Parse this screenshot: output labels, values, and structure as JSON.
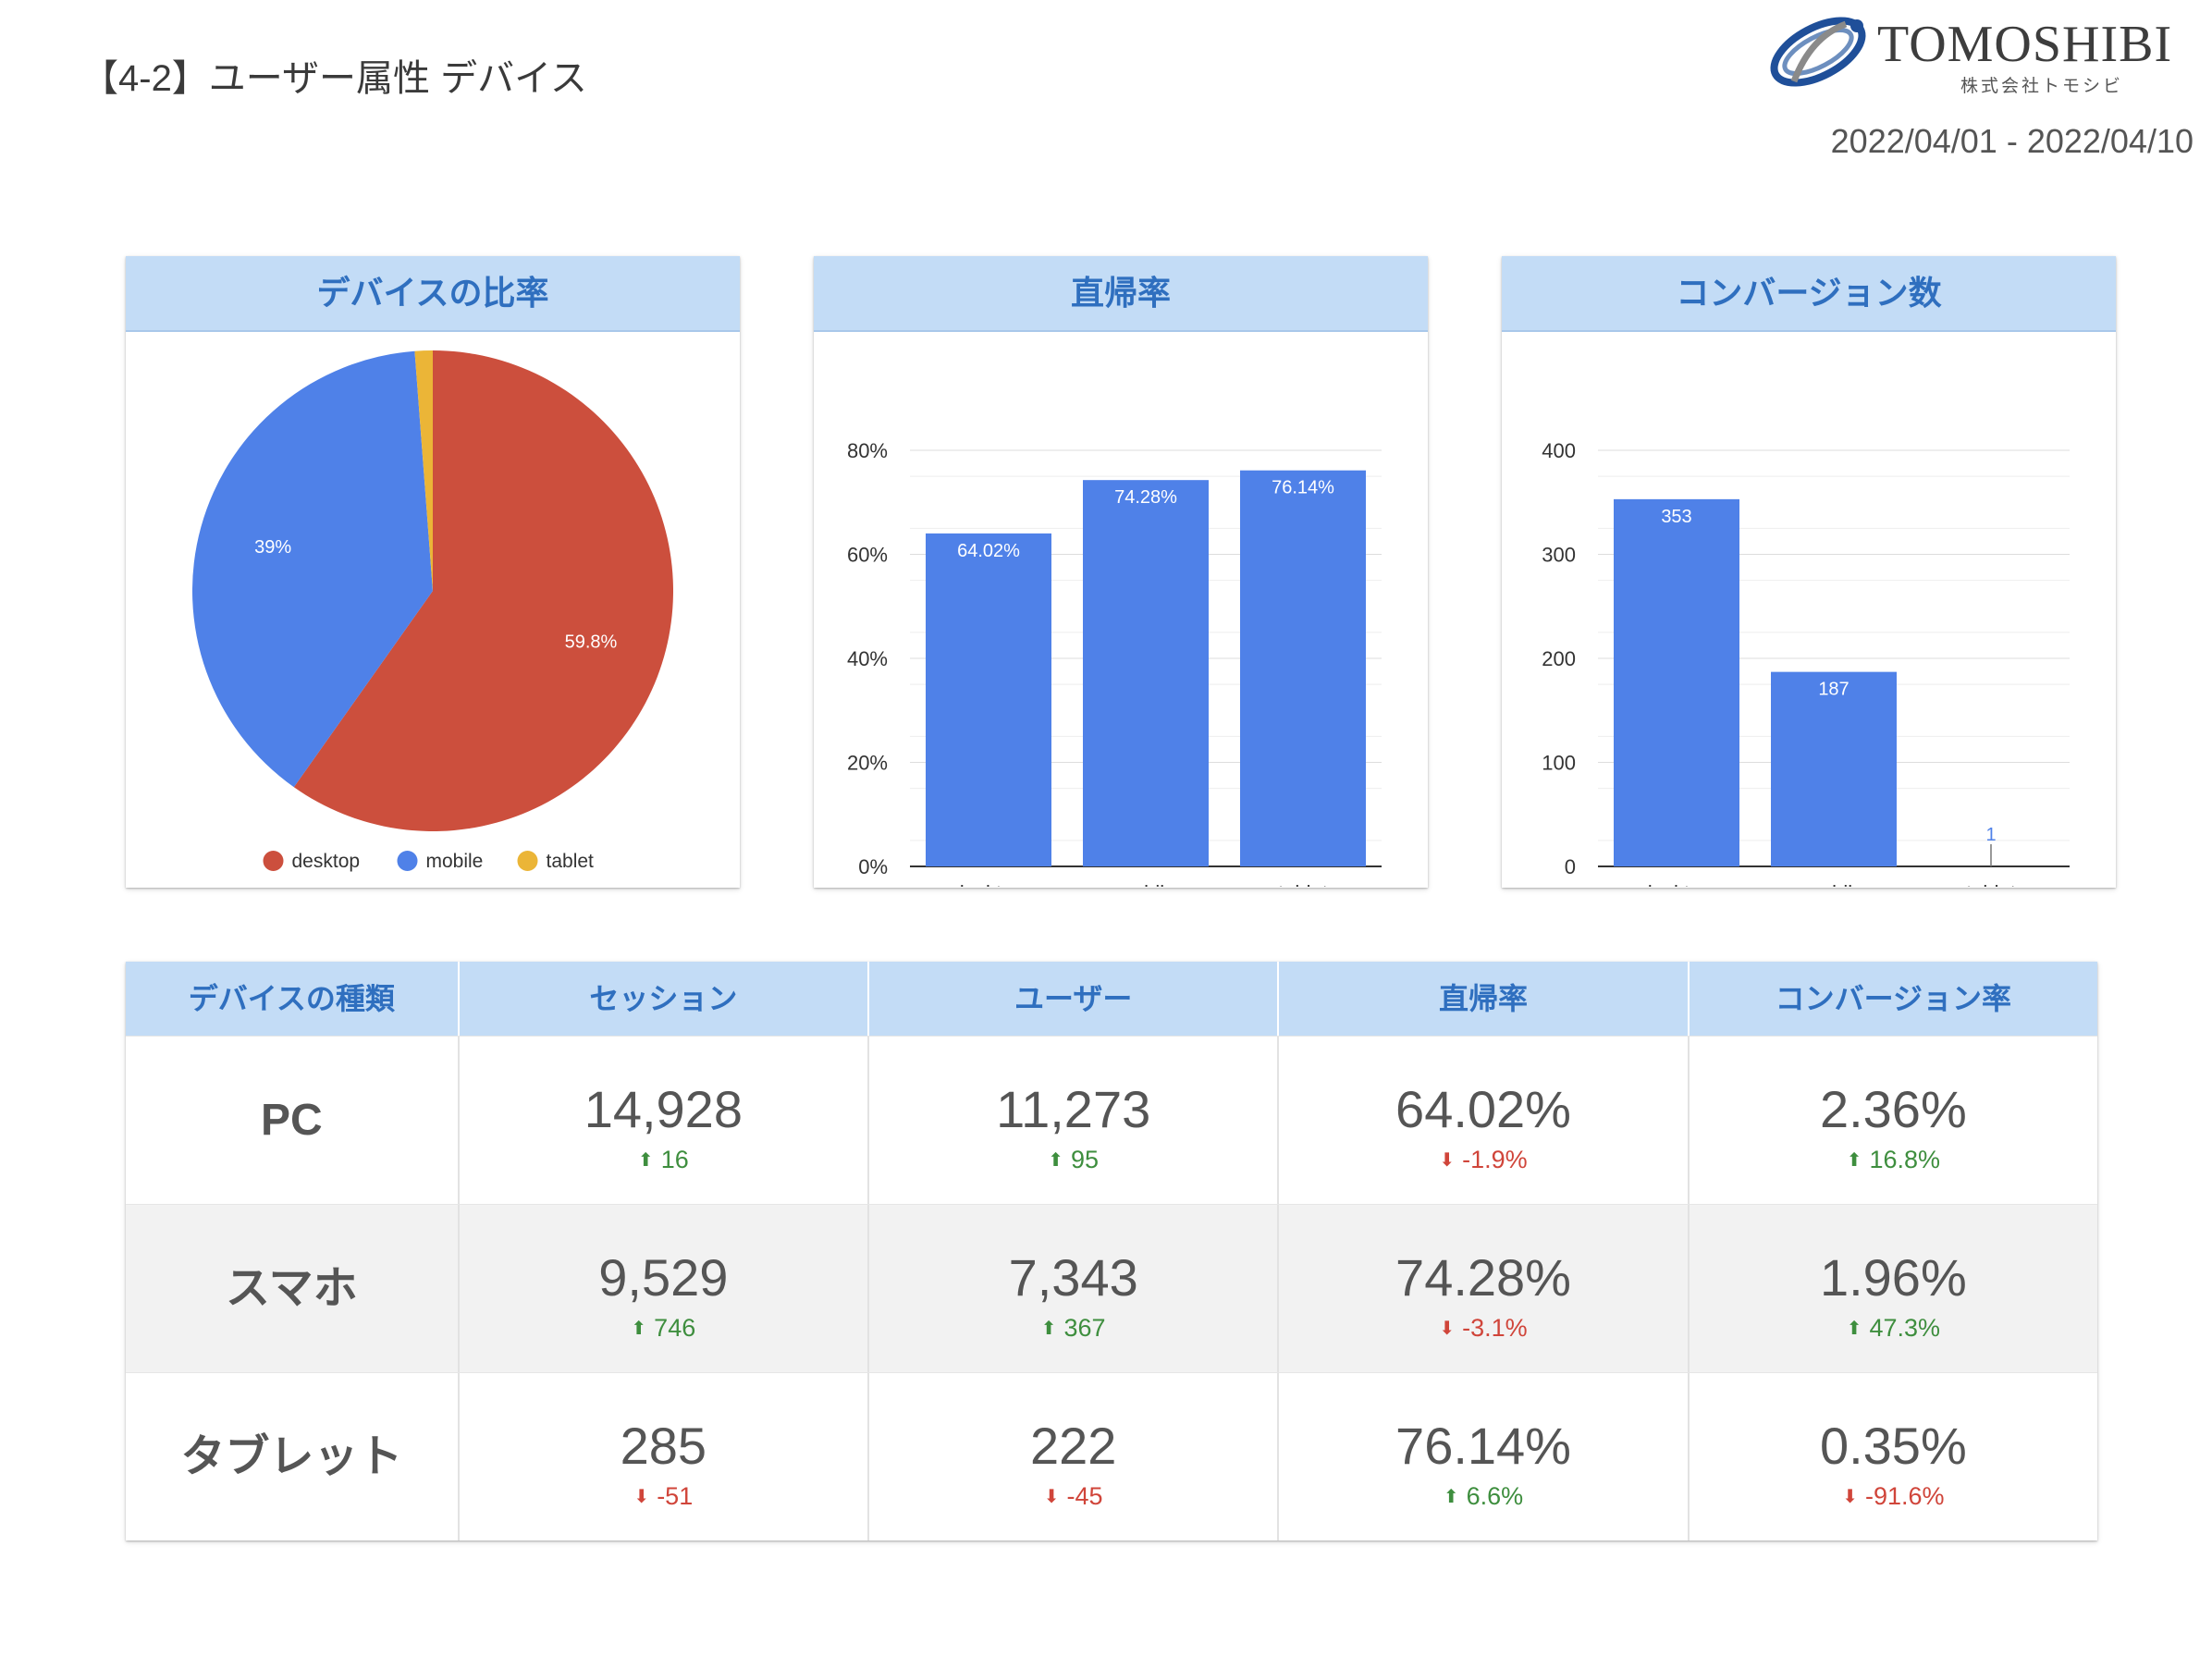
{
  "page": {
    "title": "【4-2】ユーザー属性 デバイス",
    "date_range": "2022/04/01 - 2022/04/10"
  },
  "logo": {
    "name": "TOMOSHIBI",
    "subtitle": "株式会社トモシビ"
  },
  "colors": {
    "header_bg": "#c3dcf6",
    "header_text": "#2f6fbf",
    "bar": "#4f81e8",
    "desktop": "#cc4f3d",
    "mobile": "#4f81e8",
    "tablet": "#ebb537",
    "up": "#3e8e3e",
    "down": "#d0453a"
  },
  "chart_data": [
    {
      "type": "pie",
      "title": "デバイスの比率",
      "categories": [
        "desktop",
        "mobile",
        "tablet"
      ],
      "values": [
        59.8,
        39.0,
        1.2
      ],
      "labels": [
        "59.8%",
        "39%",
        ""
      ],
      "legend": "bottom"
    },
    {
      "type": "bar",
      "title": "直帰率",
      "categories": [
        "desktop",
        "mobile",
        "tablet"
      ],
      "values": [
        64.02,
        74.28,
        76.14
      ],
      "labels": [
        "64.02%",
        "74.28%",
        "76.14%"
      ],
      "yticks": [
        "0%",
        "20%",
        "40%",
        "60%",
        "80%"
      ],
      "ylim": [
        0,
        80
      ],
      "grid": true
    },
    {
      "type": "bar",
      "title": "コンバージョン数",
      "categories": [
        "desktop",
        "mobile",
        "tablet"
      ],
      "values": [
        353,
        187,
        1
      ],
      "labels": [
        "353",
        "187",
        "1"
      ],
      "yticks": [
        "0",
        "100",
        "200",
        "300",
        "400"
      ],
      "ylim": [
        0,
        400
      ],
      "grid": true
    }
  ],
  "table": {
    "headers": [
      "デバイスの種類",
      "セッション",
      "ユーザー",
      "直帰率",
      "コンバージョン率"
    ],
    "rows": [
      {
        "label": "PC",
        "cells": [
          {
            "value": "14,928",
            "delta": "16",
            "dir": "up"
          },
          {
            "value": "11,273",
            "delta": "95",
            "dir": "up"
          },
          {
            "value": "64.02%",
            "delta": "-1.9%",
            "dir": "down"
          },
          {
            "value": "2.36%",
            "delta": "16.8%",
            "dir": "up"
          }
        ]
      },
      {
        "label": "スマホ",
        "cells": [
          {
            "value": "9,529",
            "delta": "746",
            "dir": "up"
          },
          {
            "value": "7,343",
            "delta": "367",
            "dir": "up"
          },
          {
            "value": "74.28%",
            "delta": "-3.1%",
            "dir": "down"
          },
          {
            "value": "1.96%",
            "delta": "47.3%",
            "dir": "up"
          }
        ]
      },
      {
        "label": "タブレット",
        "cells": [
          {
            "value": "285",
            "delta": "-51",
            "dir": "down"
          },
          {
            "value": "222",
            "delta": "-45",
            "dir": "down"
          },
          {
            "value": "76.14%",
            "delta": "6.6%",
            "dir": "up"
          },
          {
            "value": "0.35%",
            "delta": "-91.6%",
            "dir": "down"
          }
        ]
      }
    ]
  }
}
